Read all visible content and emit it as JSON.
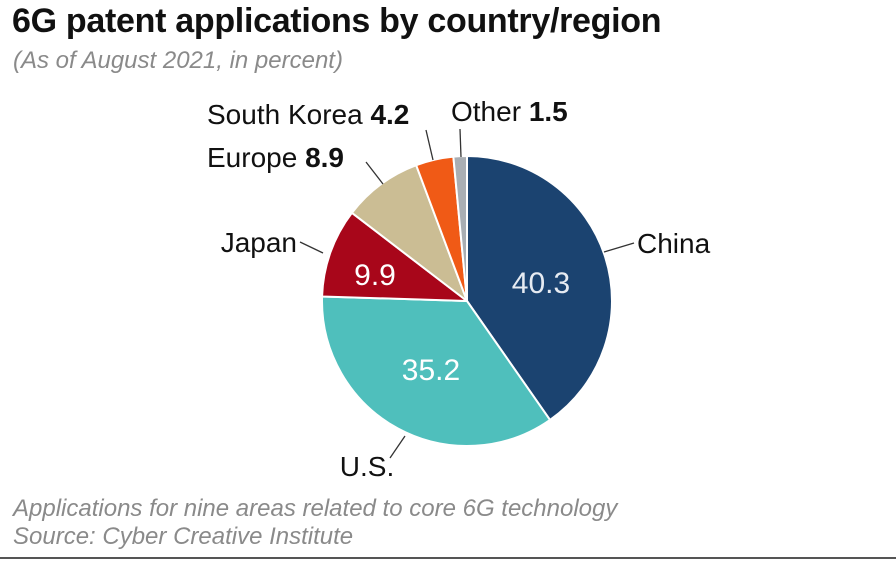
{
  "title": "6G patent applications by country/region",
  "subtitle": "(As of August 2021, in percent)",
  "footnote": {
    "line1": "Applications for nine areas related to core 6G technology",
    "line2": "Source: Cyber Creative Institute"
  },
  "chart_data": {
    "type": "pie",
    "title": "6G patent applications by country/region",
    "subtitle": "(As of August 2021, in percent)",
    "slices": [
      {
        "label": "China",
        "value": 40.3,
        "color": "#1b4370",
        "value_label_inside": true,
        "value_text_color": "#e6ebf2"
      },
      {
        "label": "U.S.",
        "value": 35.2,
        "color": "#4fbfbc",
        "value_label_inside": true,
        "value_text_color": "#ffffff"
      },
      {
        "label": "Japan",
        "value": 9.9,
        "color": "#a8061a",
        "value_label_inside": true,
        "value_text_color": "#ffffff"
      },
      {
        "label": "Europe",
        "value": 8.9,
        "color": "#cbbd94",
        "value_label_inside": false
      },
      {
        "label": "South Korea",
        "value": 4.2,
        "color": "#f05a16",
        "value_label_inside": false
      },
      {
        "label": "Other",
        "value": 1.5,
        "color": "#a9aeb3",
        "value_label_inside": false
      }
    ],
    "start_angle": "12 o'clock",
    "direction": "clockwise",
    "unit": "percent"
  }
}
